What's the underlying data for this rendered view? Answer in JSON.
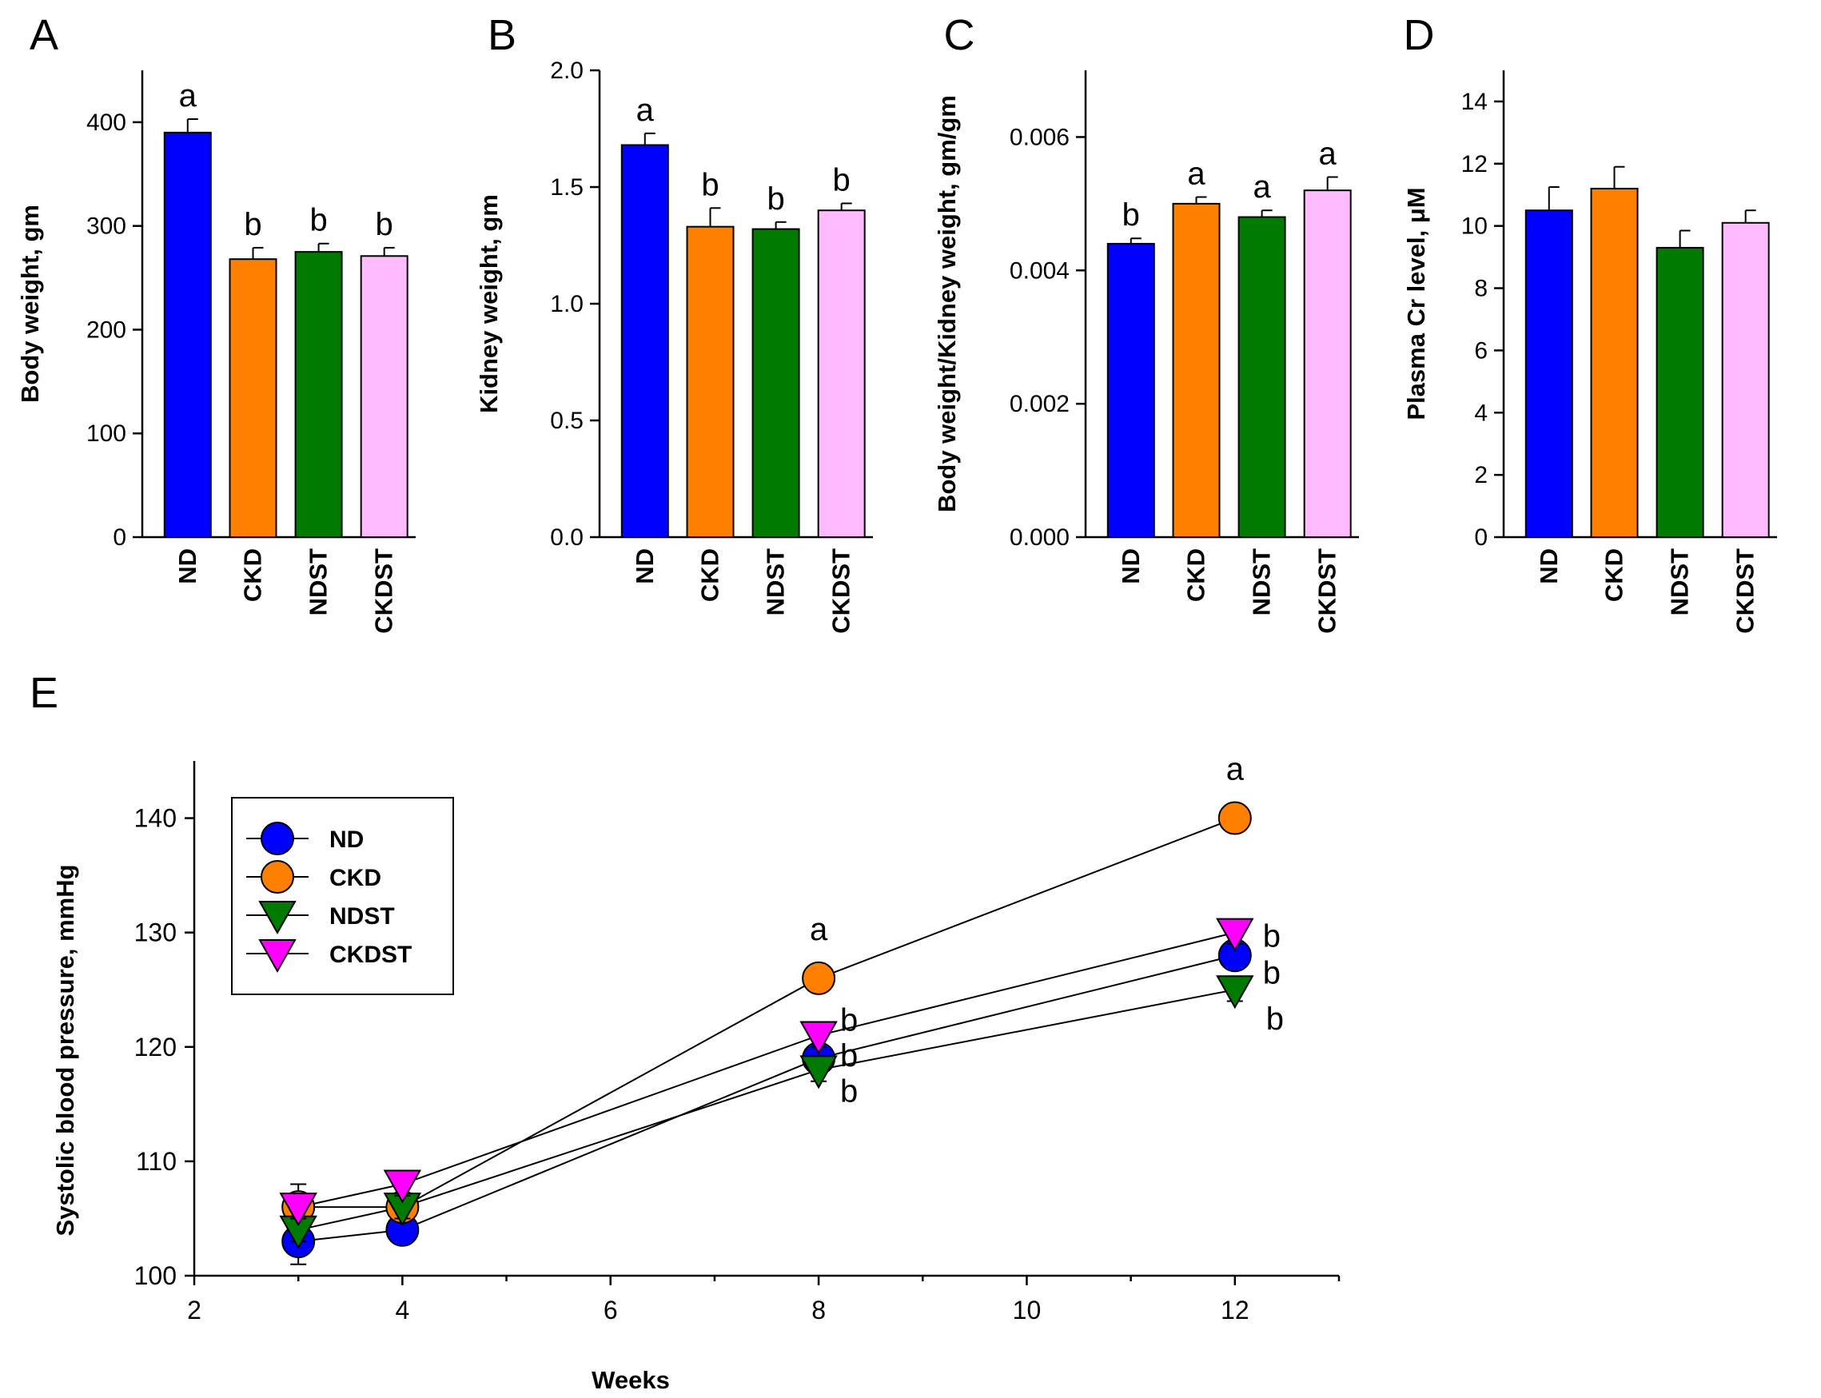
{
  "figure": {
    "categories": [
      "ND",
      "CKD",
      "NDST",
      "CKDST"
    ],
    "colors": {
      "ND": "#0000ff",
      "CKD": "#ff7f00",
      "NDST": "#007a00",
      "CKDST": "#ffbbff",
      "CKDST_marker": "#ff00ff"
    }
  },
  "chart_data": [
    {
      "id": "A",
      "type": "bar",
      "panel_label": "A",
      "ylabel": "Body weight, gm",
      "ylim": [
        0,
        450
      ],
      "yticks": [
        "0",
        "100",
        "200",
        "300",
        "400"
      ],
      "ytick_values": [
        0,
        100,
        200,
        300,
        400
      ],
      "categories": [
        "ND",
        "CKD",
        "NDST",
        "CKDST"
      ],
      "values": [
        390,
        268,
        275,
        271
      ],
      "errors": [
        13,
        11,
        8,
        8
      ],
      "sig_letters": [
        "a",
        "b",
        "b",
        "b"
      ]
    },
    {
      "id": "B",
      "type": "bar",
      "panel_label": "B",
      "ylabel": "Kidney weight, gm",
      "ylim": [
        0,
        2.0
      ],
      "yticks": [
        "0.0",
        "0.5",
        "1.0",
        "1.5",
        "2.0"
      ],
      "ytick_values": [
        0,
        0.5,
        1.0,
        1.5,
        2.0
      ],
      "categories": [
        "ND",
        "CKD",
        "NDST",
        "CKDST"
      ],
      "values": [
        1.68,
        1.33,
        1.32,
        1.4
      ],
      "errors": [
        0.05,
        0.08,
        0.03,
        0.03
      ],
      "sig_letters": [
        "a",
        "b",
        "b",
        "b"
      ]
    },
    {
      "id": "C",
      "type": "bar",
      "panel_label": "C",
      "ylabel": "Body weight/Kidney weight, gm/gm",
      "ylim": [
        0,
        0.007
      ],
      "yticks": [
        "0.000",
        "0.002",
        "0.004",
        "0.006"
      ],
      "ytick_values": [
        0,
        0.002,
        0.004,
        0.006
      ],
      "categories": [
        "ND",
        "CKD",
        "NDST",
        "CKDST"
      ],
      "values": [
        0.0044,
        0.005,
        0.0048,
        0.0052
      ],
      "errors": [
        8e-05,
        0.0001,
        0.0001,
        0.0002
      ],
      "sig_letters": [
        "b",
        "a",
        "a",
        "a"
      ]
    },
    {
      "id": "D",
      "type": "bar",
      "panel_label": "D",
      "ylabel": "Plasma Cr level, μM",
      "ylim": [
        0,
        15
      ],
      "yticks": [
        "0",
        "2",
        "4",
        "6",
        "8",
        "10",
        "12",
        "14"
      ],
      "ytick_values": [
        0,
        2,
        4,
        6,
        8,
        10,
        12,
        14
      ],
      "categories": [
        "ND",
        "CKD",
        "NDST",
        "CKDST"
      ],
      "values": [
        10.5,
        11.2,
        9.3,
        10.1
      ],
      "errors": [
        0.75,
        0.7,
        0.55,
        0.4
      ],
      "sig_letters": [
        "",
        "",
        "",
        ""
      ]
    },
    {
      "id": "E",
      "type": "line",
      "panel_label": "E",
      "xlabel": "Weeks",
      "ylabel": "Systolic blood pressure, mmHg",
      "xlim": [
        2,
        13
      ],
      "ylim": [
        100,
        145
      ],
      "xticks": [
        "2",
        "4",
        "6",
        "8",
        "10",
        "12"
      ],
      "xtick_values": [
        2,
        4,
        6,
        8,
        10,
        12
      ],
      "yticks": [
        "100",
        "110",
        "120",
        "130",
        "140"
      ],
      "ytick_values": [
        100,
        110,
        120,
        130,
        140
      ],
      "x": [
        3,
        4,
        8,
        12
      ],
      "series": [
        {
          "name": "ND",
          "marker": "circle",
          "values": [
            103,
            104,
            119,
            128
          ],
          "errors": [
            2,
            1,
            1,
            1
          ]
        },
        {
          "name": "CKD",
          "marker": "circle",
          "values": [
            106,
            106,
            126,
            140
          ],
          "errors": [
            2,
            1,
            1,
            1
          ]
        },
        {
          "name": "NDST",
          "marker": "triangle-down",
          "values": [
            104,
            106,
            118,
            125
          ],
          "errors": [
            1,
            1,
            1,
            1
          ]
        },
        {
          "name": "CKDST",
          "marker": "triangle-down",
          "values": [
            106,
            108,
            121,
            130
          ],
          "errors": [
            1,
            1,
            1,
            1
          ]
        }
      ],
      "annotations": [
        {
          "text": "a",
          "x": 8,
          "series": "CKD"
        },
        {
          "text": "a",
          "x": 12,
          "series": "CKD"
        },
        {
          "text": "b",
          "x": 8,
          "series": "CKDST"
        },
        {
          "text": "b",
          "x": 8,
          "series": "ND"
        },
        {
          "text": "b",
          "x": 8,
          "series": "NDST"
        },
        {
          "text": "b",
          "x": 12,
          "series": "CKDST"
        },
        {
          "text": "b",
          "x": 12,
          "series": "ND"
        },
        {
          "text": "b",
          "x": 12,
          "series": "NDST"
        }
      ],
      "legend": [
        "ND",
        "CKD",
        "NDST",
        "CKDST"
      ],
      "legend_position": "top-left"
    }
  ]
}
